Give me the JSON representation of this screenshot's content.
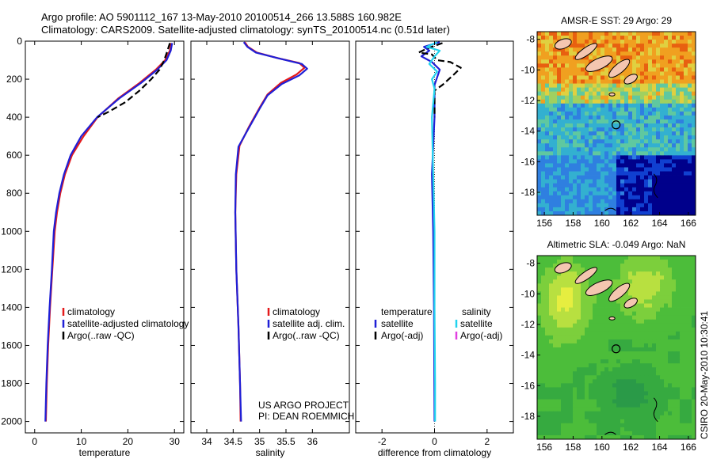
{
  "header": {
    "line1": "Argo profile: AO 5901112_167 13-May-2010 20100514_266 13.588S 160.982E",
    "line2": "Climatology: CARS2009. Satellite-adjusted climatology: synTS_20100514.nc (0.51d later)"
  },
  "side_stamp": "CSIRO 20-May-2010 10:30:41",
  "project_note": [
    "US ARGO PROJECT",
    "PI: DEAN ROEMMICH"
  ],
  "colors": {
    "climatology": "#e41a1c",
    "satellite": "#1f1fd6",
    "argo": "#000000",
    "salinity_satellite": "#22d3ee",
    "salinity_argo": "#e040e0"
  },
  "chart_data": [
    {
      "type": "line",
      "name": "temperature-profile",
      "xlabel": "temperature",
      "ylabel": "",
      "xlim": [
        -2,
        32
      ],
      "ylim": [
        2060,
        0
      ],
      "xticks": [
        0,
        10,
        20,
        30
      ],
      "yticks": [
        0,
        200,
        400,
        600,
        800,
        1000,
        1200,
        1400,
        1600,
        1800,
        2000
      ],
      "legend": [
        "climatology",
        "satellite-adjusted climatology",
        "Argo(..raw -QC)"
      ],
      "series": [
        {
          "name": "climatology",
          "style": "solid",
          "color": "#e41a1c",
          "points": [
            [
              29.3,
              10
            ],
            [
              29.0,
              50
            ],
            [
              28.0,
              100
            ],
            [
              26.0,
              150
            ],
            [
              22.5,
              220
            ],
            [
              18.0,
              300
            ],
            [
              13.5,
              400
            ],
            [
              10.5,
              500
            ],
            [
              8.0,
              600
            ],
            [
              6.5,
              700
            ],
            [
              5.5,
              800
            ],
            [
              4.8,
              900
            ],
            [
              4.3,
              1000
            ],
            [
              3.8,
              1200
            ],
            [
              3.3,
              1400
            ],
            [
              2.9,
              1600
            ],
            [
              2.6,
              1800
            ],
            [
              2.4,
              2000
            ]
          ]
        },
        {
          "name": "satellite-adjusted climatology",
          "style": "solid",
          "color": "#1f1fd6",
          "points": [
            [
              29.5,
              10
            ],
            [
              29.2,
              50
            ],
            [
              28.3,
              100
            ],
            [
              26.3,
              150
            ],
            [
              22.8,
              220
            ],
            [
              18.2,
              300
            ],
            [
              13.4,
              400
            ],
            [
              10.0,
              500
            ],
            [
              7.7,
              600
            ],
            [
              6.3,
              700
            ],
            [
              5.3,
              800
            ],
            [
              4.6,
              900
            ],
            [
              4.1,
              1000
            ],
            [
              3.7,
              1200
            ],
            [
              3.2,
              1400
            ],
            [
              2.8,
              1600
            ],
            [
              2.5,
              1800
            ],
            [
              2.3,
              2000
            ]
          ]
        },
        {
          "name": "Argo(..raw -QC)",
          "style": "dashed",
          "color": "#000000",
          "points": [
            [
              29.0,
              10
            ],
            [
              28.5,
              50
            ],
            [
              27.8,
              100
            ],
            [
              26.8,
              150
            ],
            [
              25.0,
              200
            ],
            [
              22.5,
              260
            ],
            [
              19.5,
              320
            ],
            [
              16.0,
              370
            ],
            [
              13.5,
              400
            ]
          ]
        }
      ]
    },
    {
      "type": "line",
      "name": "salinity-profile",
      "xlabel": "salinity",
      "ylabel": "",
      "xlim": [
        33.7,
        36.7
      ],
      "ylim": [
        2060,
        0
      ],
      "xticks": [
        34,
        34.5,
        35,
        35.5,
        36
      ],
      "legend": [
        "climatology",
        "satellite adj. clim.",
        "Argo(..raw -QC)"
      ],
      "series": [
        {
          "name": "climatology",
          "style": "solid",
          "color": "#e41a1c",
          "points": [
            [
              34.72,
              5
            ],
            [
              34.78,
              30
            ],
            [
              34.95,
              60
            ],
            [
              35.35,
              90
            ],
            [
              35.75,
              115
            ],
            [
              35.85,
              140
            ],
            [
              35.7,
              175
            ],
            [
              35.4,
              220
            ],
            [
              35.15,
              280
            ],
            [
              35.0,
              350
            ],
            [
              34.8,
              450
            ],
            [
              34.62,
              550
            ],
            [
              34.56,
              700
            ],
            [
              34.54,
              900
            ],
            [
              34.56,
              1200
            ],
            [
              34.6,
              1500
            ],
            [
              34.63,
              1800
            ],
            [
              34.64,
              2000
            ]
          ]
        },
        {
          "name": "satellite adj. clim.",
          "style": "solid",
          "color": "#1f1fd6",
          "points": [
            [
              34.7,
              5
            ],
            [
              34.77,
              30
            ],
            [
              34.93,
              60
            ],
            [
              35.35,
              90
            ],
            [
              35.8,
              120
            ],
            [
              35.9,
              145
            ],
            [
              35.75,
              180
            ],
            [
              35.42,
              225
            ],
            [
              35.15,
              285
            ],
            [
              35.0,
              355
            ],
            [
              34.8,
              455
            ],
            [
              34.6,
              555
            ],
            [
              34.55,
              700
            ],
            [
              34.54,
              900
            ],
            [
              34.56,
              1200
            ],
            [
              34.6,
              1500
            ],
            [
              34.63,
              1800
            ],
            [
              34.65,
              2000
            ]
          ]
        }
      ]
    },
    {
      "type": "line",
      "name": "difference-profile",
      "xlabel": "difference from climatology",
      "ylabel": "",
      "xlim": [
        -3,
        3
      ],
      "ylim": [
        2060,
        0
      ],
      "xticks": [
        -2,
        0,
        2
      ],
      "legend_temperature": [
        "temperature",
        "satellite",
        "Argo(-adj)"
      ],
      "legend_salinity": [
        "salinity",
        "satellite",
        "Argo(-adj)"
      ],
      "series": [
        {
          "name": "temperature satellite",
          "style": "solid",
          "color": "#1f1fd6",
          "points": [
            [
              0.2,
              5
            ],
            [
              -0.4,
              30
            ],
            [
              -0.2,
              50
            ],
            [
              -0.5,
              80
            ],
            [
              -0.1,
              110
            ],
            [
              0.2,
              150
            ],
            [
              0.1,
              190
            ],
            [
              0.0,
              230
            ],
            [
              0.0,
              400
            ],
            [
              -0.1,
              700
            ],
            [
              -0.05,
              1000
            ],
            [
              -0.02,
              1400
            ],
            [
              0.0,
              2000
            ]
          ]
        },
        {
          "name": "temperature Argo(-adj)",
          "style": "dashed",
          "color": "#000000",
          "points": [
            [
              0.3,
              10
            ],
            [
              -0.3,
              40
            ],
            [
              -0.6,
              60
            ],
            [
              -0.1,
              70
            ],
            [
              0.1,
              100
            ],
            [
              0.6,
              110
            ],
            [
              1.0,
              140
            ],
            [
              0.7,
              180
            ],
            [
              0.3,
              230
            ],
            [
              0.0,
              260
            ],
            [
              0.0,
              400
            ]
          ]
        },
        {
          "name": "salinity satellite",
          "style": "solid",
          "color": "#22d3ee",
          "points": [
            [
              0.1,
              5
            ],
            [
              -0.3,
              30
            ],
            [
              0.2,
              50
            ],
            [
              0.0,
              80
            ],
            [
              -0.2,
              120
            ],
            [
              0.1,
              160
            ],
            [
              -0.1,
              200
            ],
            [
              0.0,
              250
            ],
            [
              -0.1,
              400
            ],
            [
              -0.05,
              700
            ],
            [
              0.0,
              1000
            ],
            [
              0.0,
              1400
            ],
            [
              0.02,
              1800
            ],
            [
              0.02,
              2000
            ]
          ]
        }
      ]
    },
    {
      "type": "heatmap",
      "name": "amsr-sst-map",
      "title": "AMSR-E SST: 29 Argo: 29",
      "xlim": [
        155.5,
        166.5
      ],
      "ylim": [
        -19.5,
        -7.5
      ],
      "xticks": [
        156,
        158,
        160,
        162,
        164,
        166
      ],
      "yticks": [
        -8,
        -10,
        -12,
        -14,
        -16,
        -18
      ],
      "profile_location": [
        160.98,
        -13.59
      ]
    },
    {
      "type": "heatmap",
      "name": "altimetric-sla-map",
      "title": "Altimetric SLA: -0.049 Argo: NaN",
      "xlim": [
        155.5,
        166.5
      ],
      "ylim": [
        -19.5,
        -7.5
      ],
      "xticks": [
        156,
        158,
        160,
        162,
        164,
        166
      ],
      "yticks": [
        -8,
        -10,
        -12,
        -14,
        -16,
        -18
      ],
      "profile_location": [
        160.98,
        -13.59
      ]
    }
  ]
}
